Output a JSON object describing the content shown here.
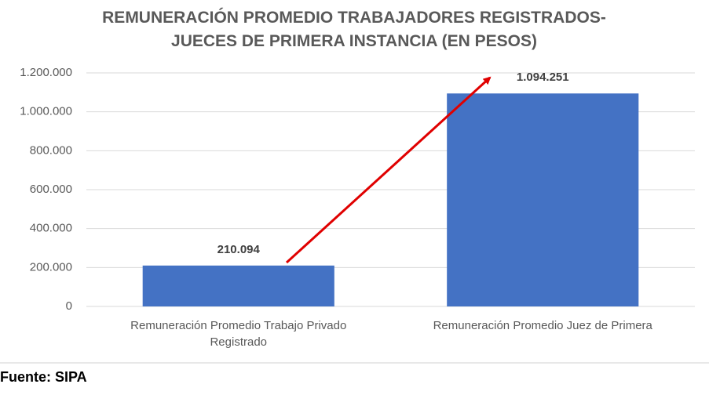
{
  "chart_data": {
    "type": "bar",
    "title": "REMUNERACIÓN PROMEDIO TRABAJADORES REGISTRADOS- JUECES DE PRIMERA INSTANCIA (EN PESOS)",
    "categories": [
      "Remuneración Promedio Trabajo Privado Registrado",
      "Remuneración Promedio Juez de Primera"
    ],
    "values": [
      210094,
      1094251
    ],
    "value_labels": [
      "210.094",
      "1.094.251"
    ],
    "color": "#4472c4",
    "ylim": [
      0,
      1200000
    ],
    "yticks": [
      0,
      {
        "value": 200000,
        "label": "200.000"
      },
      {
        "value": 400000,
        "label": "400.000"
      },
      {
        "value": 600000,
        "label": "600.000"
      },
      {
        "value": 800000,
        "label": "800.000"
      },
      {
        "value": 1000000,
        "label": "1.000.000"
      },
      {
        "value": 1200000,
        "label": "1.200.000"
      }
    ],
    "grid": true,
    "source": "Fuente: SIPA"
  }
}
